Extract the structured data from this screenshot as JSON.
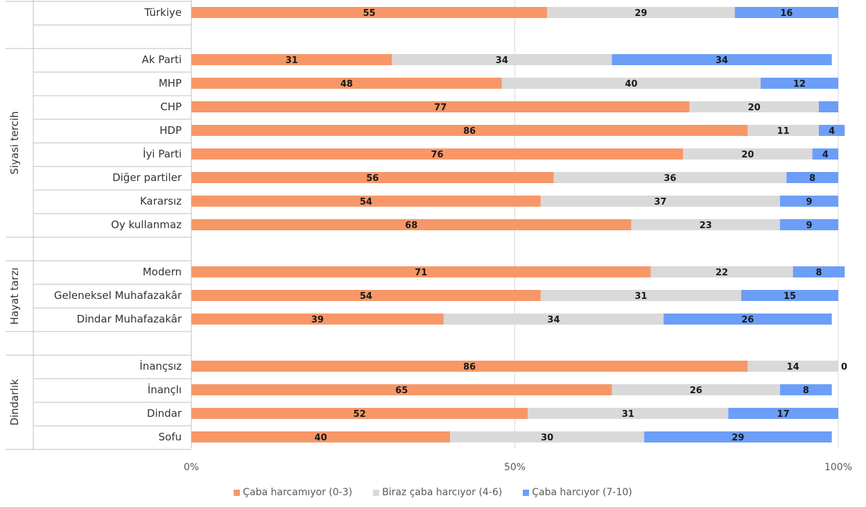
{
  "chart_data": {
    "type": "bar",
    "orientation": "horizontal",
    "stacked": true,
    "percent_axis": true,
    "xlim": [
      0,
      100
    ],
    "x_ticks": [
      "0%",
      "50%",
      "100%"
    ],
    "categories": [
      {
        "label": "Türkiye",
        "group": null
      },
      {
        "label": "",
        "group": null
      },
      {
        "label": "Ak Parti",
        "group": "Siyasi tercih"
      },
      {
        "label": "MHP",
        "group": "Siyasi tercih"
      },
      {
        "label": "CHP",
        "group": "Siyasi tercih"
      },
      {
        "label": "HDP",
        "group": "Siyasi tercih"
      },
      {
        "label": "İyi Parti",
        "group": "Siyasi tercih"
      },
      {
        "label": "Diğer partiler",
        "group": "Siyasi tercih"
      },
      {
        "label": "Kararsız",
        "group": "Siyasi tercih"
      },
      {
        "label": "Oy kullanmaz",
        "group": "Siyasi tercih"
      },
      {
        "label": "",
        "group": null
      },
      {
        "label": "Modern",
        "group": "Hayat tarzı"
      },
      {
        "label": "Geleneksel Muhafazakâr",
        "group": "Hayat tarzı"
      },
      {
        "label": "Dindar Muhafazakâr",
        "group": "Hayat tarzı"
      },
      {
        "label": "",
        "group": null
      },
      {
        "label": "İnançsız",
        "group": "Dindarlık"
      },
      {
        "label": "İnançlı",
        "group": "Dindarlık"
      },
      {
        "label": "Dindar",
        "group": "Dindarlık"
      },
      {
        "label": "Sofu",
        "group": "Dindarlık"
      }
    ],
    "groups": [
      "Siyasi tercih",
      "Hayat tarzı",
      "Dindarlık"
    ],
    "series": [
      {
        "name": "Çaba harcamıyor (0-3)",
        "color": "#F79767",
        "values": [
          55,
          null,
          31,
          48,
          77,
          86,
          76,
          56,
          54,
          68,
          null,
          71,
          54,
          39,
          null,
          86,
          65,
          52,
          40
        ],
        "labels": [
          "55",
          "",
          "31",
          "48",
          "77",
          "86",
          "76",
          "56",
          "54",
          "68",
          "",
          "71",
          "54",
          "39",
          "",
          "86",
          "65",
          "52",
          "40"
        ]
      },
      {
        "name": "Biraz çaba harcıyor (4-6)",
        "color": "#D9D9D9",
        "values": [
          29,
          null,
          34,
          40,
          20,
          11,
          20,
          36,
          37,
          23,
          null,
          22,
          31,
          34,
          null,
          14,
          26,
          31,
          30
        ],
        "labels": [
          "29",
          "",
          "34",
          "40",
          "20",
          "11",
          "20",
          "36",
          "37",
          "23",
          "",
          "22",
          "31",
          "34",
          "",
          "14",
          "26",
          "31",
          "30"
        ]
      },
      {
        "name": "Çaba harcıyor (7-10)",
        "color": "#6C9EF8",
        "values": [
          16,
          null,
          34,
          12,
          3,
          4,
          4,
          8,
          9,
          9,
          null,
          8,
          15,
          26,
          null,
          0,
          8,
          17,
          29
        ],
        "labels": [
          "16",
          "",
          "34",
          "12",
          "",
          "4",
          "4",
          "8",
          "9",
          "9",
          "",
          "8",
          "15",
          "26",
          "",
          "0",
          "8",
          "17",
          "29"
        ]
      }
    ],
    "legend_position": "bottom",
    "grid": "vertical at 50% and 100%"
  }
}
